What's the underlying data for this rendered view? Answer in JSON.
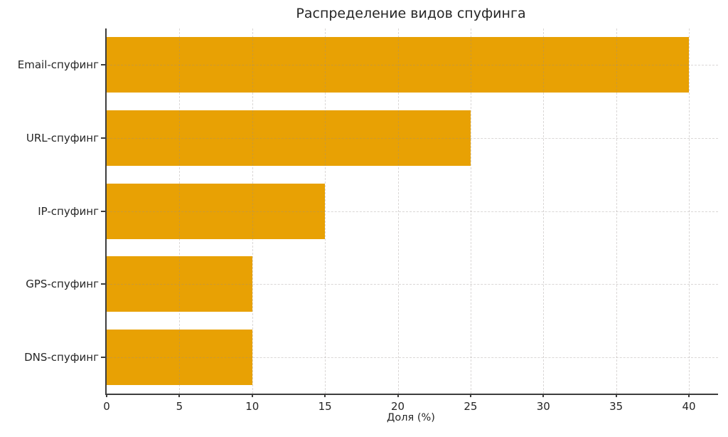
{
  "title": "Распределение видов спуфинга",
  "chart_data": {
    "type": "bar",
    "orientation": "horizontal",
    "title": "Распределение видов спуфинга",
    "xlabel": "Доля (%)",
    "ylabel": "",
    "categories": [
      "Email-спуфинг",
      "URL-спуфинг",
      "IP-спуфинг",
      "GPS-спуфинг",
      "DNS-спуфинг"
    ],
    "values": [
      40,
      25,
      15,
      10,
      10
    ],
    "xlim": [
      0,
      42
    ],
    "xticks": [
      0,
      5,
      10,
      15,
      20,
      25,
      30,
      35,
      40
    ],
    "grid": true,
    "grid_style": "dashed",
    "legend": "none",
    "colors": {
      "bar": "#E8A104",
      "axis": "#3D3D3D",
      "grid": "rgba(150,140,138,0.35)",
      "text": "#262626",
      "background": "#FFFFFF"
    }
  }
}
